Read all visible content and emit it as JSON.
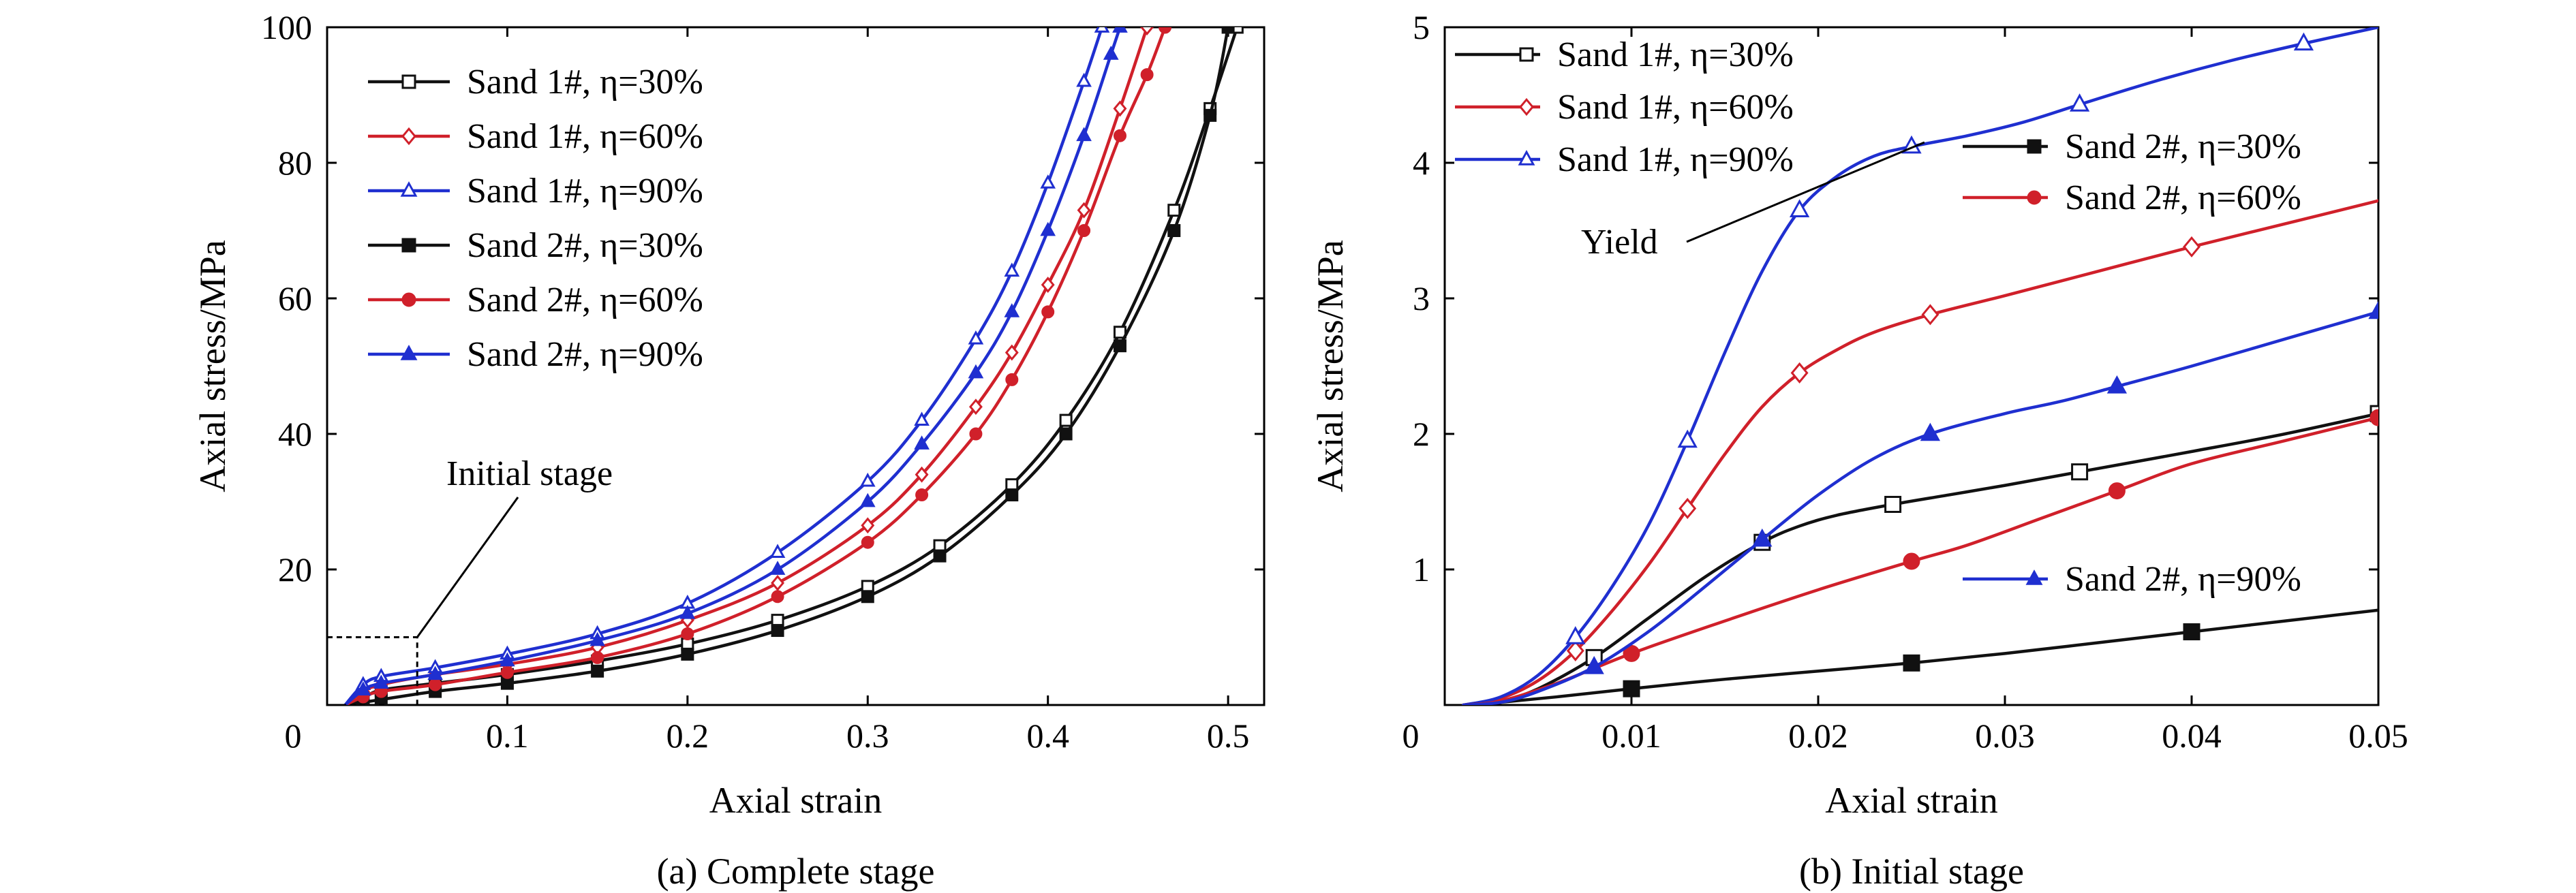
{
  "chart_data": [
    {
      "type": "line",
      "caption": "(a) Complete stage",
      "xlabel": "Axial strain",
      "ylabel": "Axial stress/MPa",
      "xlim": [
        0,
        0.52
      ],
      "ylim": [
        0,
        100
      ],
      "xticks": [
        0,
        0.1,
        0.2,
        0.3,
        0.4,
        0.5
      ],
      "xtick_labels": [
        "0",
        "0.1",
        "0.2",
        "0.3",
        "0.4",
        "0.5"
      ],
      "yticks": [
        20,
        40,
        60,
        80,
        100
      ],
      "ytick_labels": [
        "20",
        "40",
        "60",
        "80",
        "100"
      ],
      "grid": false,
      "legend_position": "top-left",
      "annotation": {
        "text": "Initial stage",
        "box": {
          "x": [
            0,
            0.05
          ],
          "y": [
            0,
            10
          ]
        }
      },
      "series": [
        {
          "name": "Sand 1#, η=30%",
          "color": "#111111",
          "marker": "open-square",
          "x": [
            0.01,
            0.02,
            0.03,
            0.06,
            0.1,
            0.15,
            0.2,
            0.25,
            0.3,
            0.34,
            0.38,
            0.41,
            0.44,
            0.47,
            0.49,
            0.505
          ],
          "y": [
            0,
            1.0,
            2.2,
            3.2,
            4.5,
            6.5,
            9.0,
            12.5,
            17.5,
            23.5,
            32.5,
            42.0,
            55.0,
            73.0,
            88.0,
            100.0
          ]
        },
        {
          "name": "Sand 1#, η=60%",
          "color": "#d0202a",
          "marker": "open-diamond",
          "x": [
            0.01,
            0.02,
            0.03,
            0.06,
            0.1,
            0.15,
            0.2,
            0.25,
            0.3,
            0.33,
            0.36,
            0.38,
            0.4,
            0.42,
            0.44,
            0.455
          ],
          "y": [
            0,
            2.0,
            3.0,
            4.5,
            6.0,
            8.5,
            12.5,
            18.0,
            26.5,
            34.0,
            44.0,
            52.0,
            62.0,
            73.0,
            88.0,
            100.0
          ]
        },
        {
          "name": "Sand 1#, η=90%",
          "color": "#1f2fd0",
          "marker": "open-triangle",
          "x": [
            0.01,
            0.02,
            0.03,
            0.06,
            0.1,
            0.15,
            0.2,
            0.25,
            0.3,
            0.33,
            0.36,
            0.38,
            0.4,
            0.42,
            0.43
          ],
          "y": [
            0,
            3.0,
            4.2,
            5.5,
            7.5,
            10.5,
            15.0,
            22.5,
            33.0,
            42.0,
            54.0,
            64.0,
            77.0,
            92.0,
            100.0
          ]
        },
        {
          "name": "Sand 2#, η=30%",
          "color": "#111111",
          "marker": "filled-square",
          "x": [
            0.01,
            0.02,
            0.03,
            0.06,
            0.1,
            0.15,
            0.2,
            0.25,
            0.3,
            0.34,
            0.38,
            0.41,
            0.44,
            0.47,
            0.49,
            0.5
          ],
          "y": [
            0,
            0.4,
            0.8,
            2.0,
            3.2,
            5.0,
            7.5,
            11.0,
            16.0,
            22.0,
            31.0,
            40.0,
            53.0,
            70.0,
            87.0,
            100.0
          ]
        },
        {
          "name": "Sand 2#, η=60%",
          "color": "#d0202a",
          "marker": "filled-circle",
          "x": [
            0.01,
            0.02,
            0.03,
            0.06,
            0.1,
            0.15,
            0.2,
            0.25,
            0.3,
            0.33,
            0.36,
            0.38,
            0.4,
            0.42,
            0.44,
            0.455,
            0.465
          ],
          "y": [
            0,
            1.2,
            2.0,
            3.0,
            4.8,
            7.0,
            10.5,
            16.0,
            24.0,
            31.0,
            40.0,
            48.0,
            58.0,
            70.0,
            84.0,
            93.0,
            100.0
          ]
        },
        {
          "name": "Sand 2#, η=90%",
          "color": "#1f2fd0",
          "marker": "filled-triangle",
          "x": [
            0.01,
            0.02,
            0.03,
            0.06,
            0.1,
            0.15,
            0.2,
            0.25,
            0.3,
            0.33,
            0.36,
            0.38,
            0.4,
            0.42,
            0.435,
            0.44
          ],
          "y": [
            0,
            2.2,
            3.2,
            4.5,
            6.5,
            9.5,
            13.5,
            20.0,
            30.0,
            38.5,
            49.0,
            58.0,
            70.0,
            84.0,
            96.0,
            100.0
          ]
        }
      ]
    },
    {
      "type": "line",
      "caption": "(b) Initial stage",
      "xlabel": "Axial strain",
      "ylabel": "Axial stress/MPa",
      "xlim": [
        0,
        0.05
      ],
      "ylim": [
        0,
        5
      ],
      "xticks": [
        0,
        0.01,
        0.02,
        0.03,
        0.04,
        0.05
      ],
      "xtick_labels": [
        "0",
        "0.01",
        "0.02",
        "0.03",
        "0.04",
        "0.05"
      ],
      "yticks": [
        1,
        2,
        3,
        4,
        5
      ],
      "ytick_labels": [
        "1",
        "2",
        "3",
        "4",
        "5"
      ],
      "grid": false,
      "annotation": {
        "text": "Yield",
        "point": [
          0.0235,
          4.0
        ]
      },
      "series": [
        {
          "name": "Sand 1#, η=30%",
          "color": "#111111",
          "marker": "open-square",
          "legend_group": "left",
          "x": [
            0.001,
            0.003,
            0.005,
            0.008,
            0.011,
            0.014,
            0.017,
            0.019,
            0.021,
            0.024,
            0.027,
            0.03,
            0.034,
            0.04,
            0.045,
            0.05
          ],
          "y": [
            0.0,
            0.03,
            0.12,
            0.35,
            0.65,
            0.95,
            1.2,
            1.32,
            1.4,
            1.48,
            1.55,
            1.62,
            1.72,
            1.87,
            2.0,
            2.15
          ]
        },
        {
          "name": "Sand 1#, η=60%",
          "color": "#d0202a",
          "marker": "open-diamond",
          "legend_group": "left",
          "x": [
            0.001,
            0.003,
            0.005,
            0.007,
            0.009,
            0.011,
            0.013,
            0.015,
            0.017,
            0.019,
            0.021,
            0.023,
            0.026,
            0.03,
            0.035,
            0.04,
            0.045,
            0.05
          ],
          "y": [
            0.0,
            0.05,
            0.18,
            0.4,
            0.7,
            1.05,
            1.45,
            1.85,
            2.2,
            2.45,
            2.62,
            2.75,
            2.88,
            3.02,
            3.2,
            3.38,
            3.55,
            3.72
          ]
        },
        {
          "name": "Sand 1#, η=90%",
          "color": "#1f2fd0",
          "marker": "open-triangle",
          "legend_group": "left",
          "x": [
            0.001,
            0.003,
            0.005,
            0.007,
            0.009,
            0.011,
            0.013,
            0.015,
            0.017,
            0.019,
            0.021,
            0.023,
            0.025,
            0.028,
            0.031,
            0.034,
            0.038,
            0.042,
            0.046,
            0.05
          ],
          "y": [
            0.0,
            0.06,
            0.22,
            0.5,
            0.88,
            1.35,
            1.95,
            2.6,
            3.2,
            3.65,
            3.9,
            4.05,
            4.12,
            4.2,
            4.3,
            4.43,
            4.6,
            4.75,
            4.88,
            5.0
          ]
        },
        {
          "name": "Sand 2#, η=30%",
          "color": "#111111",
          "marker": "filled-square",
          "legend_group": "right",
          "x": [
            0.001,
            0.003,
            0.006,
            0.01,
            0.015,
            0.02,
            0.025,
            0.03,
            0.035,
            0.04,
            0.045,
            0.05
          ],
          "y": [
            0.0,
            0.02,
            0.06,
            0.12,
            0.19,
            0.25,
            0.31,
            0.38,
            0.46,
            0.54,
            0.62,
            0.7
          ]
        },
        {
          "name": "Sand 2#, η=60%",
          "color": "#d0202a",
          "marker": "filled-circle",
          "legend_group": "right",
          "x": [
            0.001,
            0.003,
            0.006,
            0.01,
            0.015,
            0.02,
            0.025,
            0.028,
            0.032,
            0.036,
            0.04,
            0.045,
            0.05
          ],
          "y": [
            0.0,
            0.03,
            0.16,
            0.38,
            0.62,
            0.85,
            1.06,
            1.18,
            1.38,
            1.58,
            1.78,
            1.95,
            2.12
          ]
        },
        {
          "name": "Sand 2#, η=90%",
          "color": "#1f2fd0",
          "marker": "filled-triangle",
          "legend_group": "right",
          "x": [
            0.001,
            0.003,
            0.005,
            0.008,
            0.011,
            0.014,
            0.017,
            0.02,
            0.023,
            0.026,
            0.03,
            0.033,
            0.036,
            0.04,
            0.045,
            0.05
          ],
          "y": [
            0.0,
            0.02,
            0.1,
            0.28,
            0.55,
            0.88,
            1.22,
            1.55,
            1.82,
            2.0,
            2.15,
            2.24,
            2.35,
            2.5,
            2.7,
            2.9
          ]
        }
      ]
    }
  ]
}
